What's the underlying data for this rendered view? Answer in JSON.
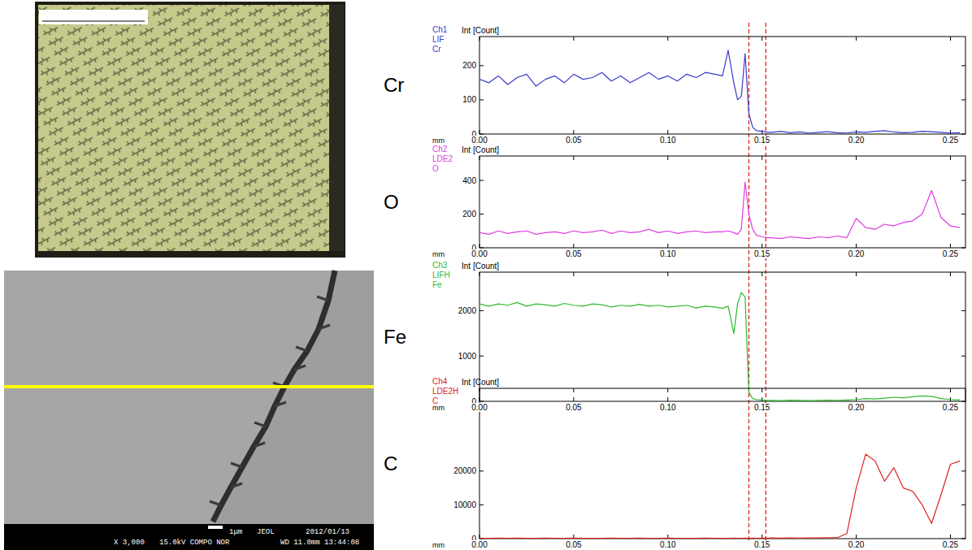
{
  "chart_data": [
    {
      "type": "line",
      "title": "Cr",
      "channel": [
        "Ch1",
        "LIF",
        "Cr"
      ],
      "y_label": "Int [Count]",
      "x_label": "mm",
      "color": "#3a3acc",
      "grid": false,
      "xlim": [
        0,
        0.258
      ],
      "xticks": [
        {
          "value": 0,
          "label": "0.00"
        },
        0.05,
        {
          "value": 0.1,
          "label": "0.10"
        },
        0.15,
        {
          "value": 0.2,
          "label": "0.20"
        },
        0.25
      ],
      "ylim": [
        0,
        285
      ],
      "yticks": [
        0,
        100,
        200
      ],
      "x": [
        0,
        0.005,
        0.01,
        0.015,
        0.02,
        0.025,
        0.03,
        0.035,
        0.04,
        0.045,
        0.05,
        0.055,
        0.06,
        0.065,
        0.07,
        0.075,
        0.08,
        0.085,
        0.09,
        0.095,
        0.1,
        0.105,
        0.11,
        0.115,
        0.12,
        0.125,
        0.129,
        0.132,
        0.135,
        0.137,
        0.139,
        0.141,
        0.143,
        0.145,
        0.147,
        0.15,
        0.153,
        0.155,
        0.16,
        0.165,
        0.17,
        0.175,
        0.18,
        0.185,
        0.19,
        0.195,
        0.2,
        0.205,
        0.21,
        0.215,
        0.22,
        0.225,
        0.23,
        0.235,
        0.24,
        0.245,
        0.25,
        0.255
      ],
      "values": [
        160,
        150,
        170,
        145,
        165,
        175,
        140,
        160,
        170,
        150,
        175,
        160,
        165,
        180,
        155,
        170,
        150,
        165,
        180,
        160,
        170,
        155,
        175,
        165,
        180,
        175,
        170,
        245,
        150,
        100,
        110,
        235,
        60,
        20,
        10,
        8,
        5,
        5,
        8,
        4,
        6,
        3,
        5,
        7,
        4,
        3,
        6,
        5,
        8,
        10,
        6,
        4,
        5,
        8,
        7,
        5,
        3,
        4
      ]
    },
    {
      "type": "line",
      "title": "O",
      "channel": [
        "Ch2",
        "LDE2",
        "O"
      ],
      "y_label": "Int [Count]",
      "x_label": "mm",
      "color": "#e03ce0",
      "grid": false,
      "xlim": [
        0,
        0.258
      ],
      "xticks": [
        {
          "value": 0,
          "label": "0.00"
        },
        0.05,
        {
          "value": 0.1,
          "label": "0.10"
        },
        0.15,
        {
          "value": 0.2,
          "label": "0.20"
        },
        0.25
      ],
      "ylim": [
        0,
        545
      ],
      "yticks": [
        0,
        200,
        400
      ],
      "x": [
        0,
        0.005,
        0.01,
        0.015,
        0.02,
        0.025,
        0.03,
        0.035,
        0.04,
        0.045,
        0.05,
        0.055,
        0.06,
        0.065,
        0.07,
        0.075,
        0.08,
        0.085,
        0.09,
        0.095,
        0.1,
        0.105,
        0.11,
        0.115,
        0.12,
        0.125,
        0.129,
        0.132,
        0.135,
        0.137,
        0.139,
        0.141,
        0.143,
        0.145,
        0.147,
        0.15,
        0.153,
        0.155,
        0.16,
        0.165,
        0.17,
        0.175,
        0.18,
        0.185,
        0.19,
        0.195,
        0.2,
        0.205,
        0.21,
        0.215,
        0.22,
        0.225,
        0.23,
        0.235,
        0.24,
        0.245,
        0.25,
        0.255
      ],
      "values": [
        90,
        80,
        100,
        85,
        95,
        100,
        80,
        90,
        95,
        85,
        100,
        90,
        95,
        105,
        85,
        100,
        90,
        95,
        110,
        90,
        100,
        85,
        95,
        100,
        90,
        95,
        95,
        100,
        90,
        80,
        110,
        390,
        200,
        110,
        75,
        65,
        60,
        60,
        55,
        65,
        60,
        55,
        65,
        60,
        70,
        60,
        175,
        120,
        110,
        140,
        130,
        150,
        160,
        200,
        340,
        180,
        130,
        120
      ]
    },
    {
      "type": "line",
      "title": "Fe",
      "channel": [
        "Ch3",
        "LIFH",
        "Fe"
      ],
      "y_label": "Int [Count]",
      "x_label": "mm",
      "color": "#30b830",
      "grid": false,
      "xlim": [
        0,
        0.258
      ],
      "xticks": [
        {
          "value": 0,
          "label": "0.00"
        },
        0.05,
        {
          "value": 0.1,
          "label": "0.10"
        },
        0.15,
        {
          "value": 0.2,
          "label": "0.20"
        },
        0.25
      ],
      "ylim": [
        0,
        2850
      ],
      "yticks": [
        0,
        1000,
        2000
      ],
      "x": [
        0,
        0.005,
        0.01,
        0.015,
        0.02,
        0.025,
        0.03,
        0.035,
        0.04,
        0.045,
        0.05,
        0.055,
        0.06,
        0.065,
        0.07,
        0.075,
        0.08,
        0.085,
        0.09,
        0.095,
        0.1,
        0.105,
        0.11,
        0.115,
        0.12,
        0.125,
        0.129,
        0.132,
        0.135,
        0.137,
        0.139,
        0.141,
        0.143,
        0.145,
        0.147,
        0.15,
        0.153,
        0.155,
        0.16,
        0.165,
        0.17,
        0.175,
        0.18,
        0.185,
        0.19,
        0.195,
        0.2,
        0.205,
        0.21,
        0.215,
        0.22,
        0.225,
        0.23,
        0.235,
        0.24,
        0.245,
        0.25,
        0.255
      ],
      "values": [
        2150,
        2100,
        2150,
        2120,
        2180,
        2100,
        2150,
        2130,
        2100,
        2160,
        2120,
        2100,
        2150,
        2130,
        2080,
        2120,
        2100,
        2140,
        2100,
        2120,
        2080,
        2100,
        2120,
        2060,
        2100,
        2080,
        2050,
        2100,
        1500,
        2150,
        2400,
        2300,
        200,
        60,
        40,
        30,
        20,
        20,
        15,
        25,
        20,
        15,
        20,
        25,
        20,
        30,
        40,
        60,
        50,
        70,
        90,
        80,
        100,
        120,
        110,
        60,
        40,
        30
      ]
    },
    {
      "type": "line",
      "title": "C",
      "channel": [
        "Ch4",
        "LDE2H",
        "C"
      ],
      "y_label": "Int [Count]",
      "x_label": "mm",
      "color": "#e02020",
      "grid": false,
      "xlim": [
        0,
        0.258
      ],
      "xticks": [
        {
          "value": 0,
          "label": "0.00"
        },
        0.05,
        {
          "value": 0.1,
          "label": "0.10"
        },
        0.15,
        {
          "value": 0.2,
          "label": "0.20"
        },
        0.25
      ],
      "ylim": [
        0,
        44500
      ],
      "yticks": [
        0,
        10000,
        20000
      ],
      "x": [
        0,
        0.005,
        0.01,
        0.015,
        0.02,
        0.025,
        0.03,
        0.035,
        0.04,
        0.045,
        0.05,
        0.055,
        0.06,
        0.065,
        0.07,
        0.075,
        0.08,
        0.085,
        0.09,
        0.095,
        0.1,
        0.105,
        0.11,
        0.115,
        0.12,
        0.125,
        0.129,
        0.132,
        0.135,
        0.137,
        0.139,
        0.141,
        0.143,
        0.145,
        0.147,
        0.15,
        0.153,
        0.155,
        0.16,
        0.165,
        0.17,
        0.175,
        0.18,
        0.185,
        0.19,
        0.195,
        0.2,
        0.205,
        0.21,
        0.215,
        0.22,
        0.225,
        0.23,
        0.235,
        0.24,
        0.245,
        0.25,
        0.255
      ],
      "values": [
        120,
        100,
        150,
        90,
        130,
        110,
        100,
        140,
        120,
        100,
        130,
        110,
        90,
        120,
        140,
        100,
        110,
        130,
        120,
        100,
        150,
        110,
        90,
        120,
        130,
        110,
        120,
        110,
        130,
        100,
        120,
        140,
        110,
        130,
        120,
        150,
        180,
        200,
        150,
        200,
        180,
        220,
        200,
        250,
        300,
        1500,
        15000,
        25000,
        23000,
        17000,
        21000,
        15000,
        14000,
        10000,
        4500,
        13000,
        22000,
        23000
      ]
    }
  ],
  "reference_lines_x": [
    0.143,
    0.152
  ],
  "sem_image": {
    "scale_bar": "1μm",
    "maker": "JEOL",
    "date": "2012/01/13",
    "magnification": "X 3,000",
    "conditions": "15.0kV COMPO NOR",
    "wd_time": "WD 11.0mm 13:44:08"
  }
}
